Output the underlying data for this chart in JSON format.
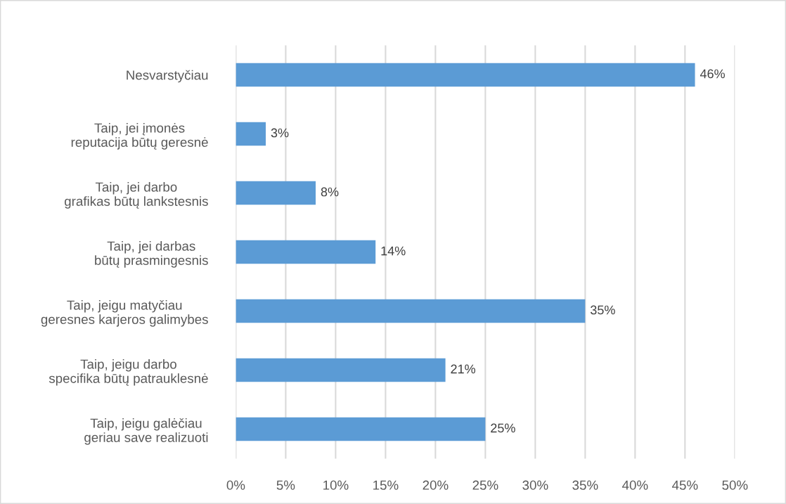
{
  "chart_data": {
    "type": "bar",
    "orientation": "horizontal",
    "categories": [
      "Nesvarstyčiau",
      "Taip, jei įmonės\nreputacija būtų geresnė",
      "Taip, jei darbo\ngrafikas būtų lankstesnis",
      "Taip, jei darbas\nbūtų prasmingesnis",
      "Taip, jeigu matyčiau\ngeresnes karjeros galimybes",
      "Taip, jeigu darbo\nspecifika būtų patrauklesnė",
      "Taip, jeigu galėčiau\ngeriau save realizuoti"
    ],
    "values": [
      46,
      3,
      8,
      14,
      35,
      21,
      25
    ],
    "value_labels": [
      "46%",
      "3%",
      "8%",
      "14%",
      "35%",
      "21%",
      "25%"
    ],
    "color": "#5b9bd5",
    "xlim": [
      0,
      50
    ],
    "xticks": [
      {
        "value": 0,
        "label": "0%"
      },
      {
        "value": 5,
        "label": "5%"
      },
      {
        "value": 10,
        "label": "10%"
      },
      {
        "value": 15,
        "label": "15%"
      },
      {
        "value": 20,
        "label": "20%"
      },
      {
        "value": 25,
        "label": "25%"
      },
      {
        "value": 30,
        "label": "30%"
      },
      {
        "value": 35,
        "label": "35%"
      },
      {
        "value": 40,
        "label": "40%"
      },
      {
        "value": 45,
        "label": "45%"
      },
      {
        "value": 50,
        "label": "50%"
      }
    ],
    "grid": "x"
  }
}
